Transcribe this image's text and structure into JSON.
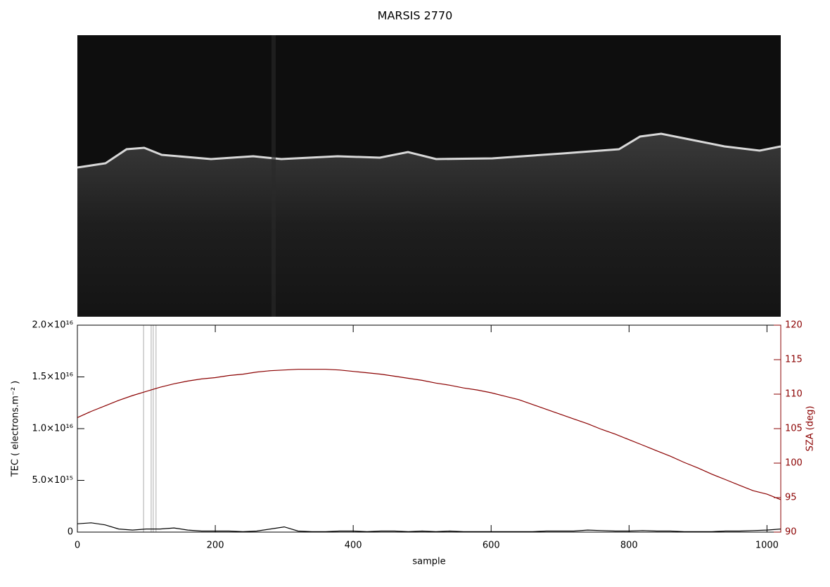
{
  "chart_data": {
    "type": "line",
    "title": "MARSIS 2770",
    "xlabel": "sample",
    "ylabel": "TEC ( electrons.m⁻² )",
    "y2label": "SZA (deg)",
    "x": [
      0,
      20,
      40,
      60,
      80,
      100,
      120,
      140,
      160,
      180,
      200,
      220,
      240,
      260,
      280,
      300,
      320,
      340,
      360,
      380,
      400,
      420,
      440,
      460,
      480,
      500,
      520,
      540,
      560,
      580,
      600,
      620,
      640,
      660,
      680,
      700,
      720,
      740,
      760,
      780,
      800,
      820,
      840,
      860,
      880,
      900,
      920,
      940,
      960,
      980,
      1000,
      1020
    ],
    "xlim": [
      0,
      1020
    ],
    "xticks": [
      0,
      200,
      400,
      600,
      800,
      1000
    ],
    "ylim": [
      0,
      2e+16
    ],
    "yticks": [
      0,
      {
        "value": 5000000000000000.0,
        "label": "5.0×10¹⁵"
      },
      {
        "value": 1e+16,
        "label": "1.0×10¹⁶"
      },
      {
        "value": 1.5e+16,
        "label": "1.5×10¹⁶"
      },
      {
        "value": 2e+16,
        "label": "2.0×10¹⁶"
      }
    ],
    "y2lim": [
      90,
      120
    ],
    "y2ticks": [
      90,
      95,
      100,
      105,
      110,
      115,
      120
    ],
    "markers": [
      96,
      107,
      110,
      114
    ],
    "marker_color": "#c8c8c8",
    "series": [
      {
        "name": "TEC",
        "color": "#000000",
        "values": [
          800000000000000.0,
          900000000000000.0,
          700000000000000.0,
          300000000000000.0,
          200000000000000.0,
          300000000000000.0,
          300000000000000.0,
          400000000000000.0,
          200000000000000.0,
          100000000000000.0,
          100000000000000.0,
          100000000000000.0,
          50000000000000.0,
          100000000000000.0,
          300000000000000.0,
          500000000000000.0,
          100000000000000.0,
          50000000000000.0,
          50000000000000.0,
          100000000000000.0,
          100000000000000.0,
          50000000000000.0,
          100000000000000.0,
          100000000000000.0,
          50000000000000.0,
          100000000000000.0,
          50000000000000.0,
          100000000000000.0,
          50000000000000.0,
          50000000000000.0,
          50000000000000.0,
          50000000000000.0,
          50000000000000.0,
          50000000000000.0,
          100000000000000.0,
          100000000000000.0,
          100000000000000.0,
          200000000000000.0,
          150000000000000.0,
          100000000000000.0,
          100000000000000.0,
          150000000000000.0,
          100000000000000.0,
          100000000000000.0,
          50000000000000.0,
          50000000000000.0,
          50000000000000.0,
          100000000000000.0,
          100000000000000.0,
          150000000000000.0,
          200000000000000.0,
          300000000000000.0
        ]
      },
      {
        "name": "SZA",
        "color": "#8b0000",
        "axis": "y2",
        "values": [
          106.6,
          107.5,
          108.3,
          109.1,
          109.8,
          110.4,
          111.0,
          111.5,
          111.9,
          112.2,
          112.4,
          112.7,
          112.9,
          113.2,
          113.4,
          113.5,
          113.6,
          113.6,
          113.6,
          113.5,
          113.3,
          113.1,
          112.9,
          112.6,
          112.3,
          112.0,
          111.6,
          111.3,
          110.9,
          110.6,
          110.2,
          109.7,
          109.2,
          108.5,
          107.8,
          107.1,
          106.4,
          105.7,
          104.9,
          104.2,
          103.4,
          102.6,
          101.8,
          101.0,
          100.1,
          99.3,
          98.4,
          97.6,
          96.8,
          96.0,
          95.5,
          94.7
        ]
      }
    ]
  }
}
